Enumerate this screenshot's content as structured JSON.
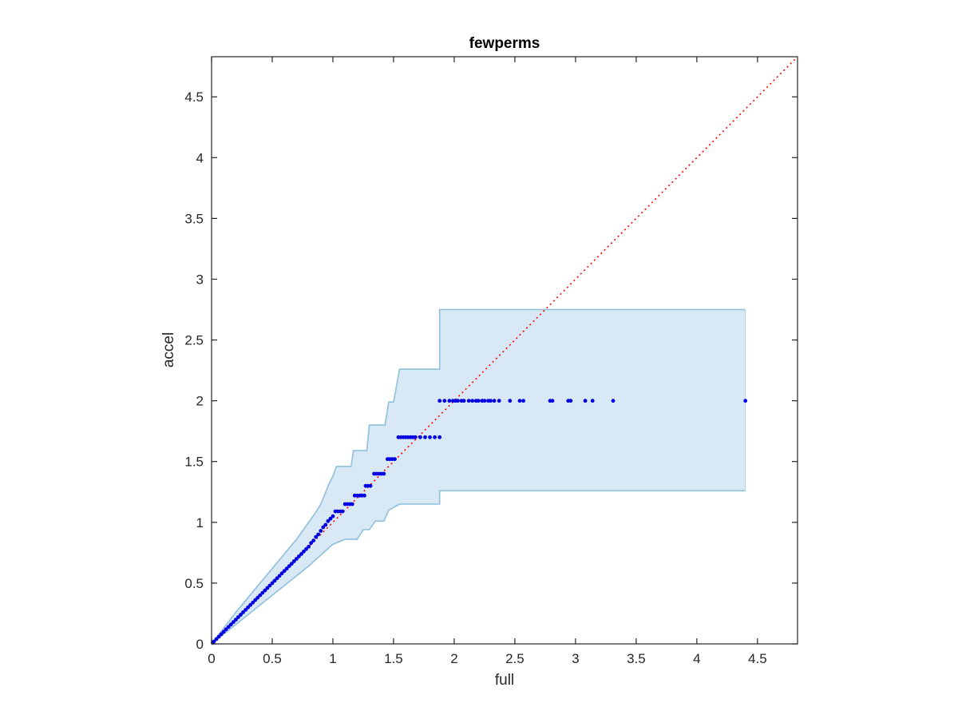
{
  "chart_data": {
    "type": "scatter",
    "title": "fewperms",
    "xlabel": "full",
    "ylabel": "accel",
    "xlim": [
      0,
      4.83
    ],
    "ylim": [
      0,
      4.83
    ],
    "xticks": [
      0,
      0.5,
      1,
      1.5,
      2,
      2.5,
      3,
      3.5,
      4,
      4.5
    ],
    "yticks": [
      0,
      0.5,
      1,
      1.5,
      2,
      2.5,
      3,
      3.5,
      4,
      4.5
    ],
    "xtick_labels": [
      "0",
      "0.5",
      "1",
      "1.5",
      "2",
      "2.5",
      "3",
      "3.5",
      "4",
      "4.5"
    ],
    "ytick_labels": [
      "0",
      "0.5",
      "1",
      "1.5",
      "2",
      "2.5",
      "3",
      "3.5",
      "4",
      "4.5"
    ],
    "grid": false,
    "colors": {
      "points": "#0000e0",
      "band_fill": "#d9e8f5",
      "band_edge": "#8ebfdb",
      "reference_line": "#ff0000",
      "axes": "#262626"
    },
    "reference_line": {
      "x": [
        0,
        4.83
      ],
      "y": [
        0,
        4.83
      ],
      "style": "dotted"
    },
    "band": {
      "upper": [
        [
          0,
          0
        ],
        [
          0.1,
          0.13
        ],
        [
          0.2,
          0.26
        ],
        [
          0.3,
          0.38
        ],
        [
          0.4,
          0.5
        ],
        [
          0.5,
          0.62
        ],
        [
          0.6,
          0.74
        ],
        [
          0.7,
          0.86
        ],
        [
          0.75,
          0.93
        ],
        [
          0.8,
          1.0
        ],
        [
          0.85,
          1.07
        ],
        [
          0.9,
          1.15
        ],
        [
          0.93,
          1.22
        ],
        [
          0.96,
          1.3
        ],
        [
          1.0,
          1.38
        ],
        [
          1.03,
          1.46
        ],
        [
          1.15,
          1.46
        ],
        [
          1.17,
          1.59
        ],
        [
          1.28,
          1.59
        ],
        [
          1.3,
          1.8
        ],
        [
          1.43,
          1.8
        ],
        [
          1.46,
          1.99
        ],
        [
          1.5,
          1.99
        ],
        [
          1.55,
          2.26
        ],
        [
          1.88,
          2.26
        ],
        [
          1.88,
          2.75
        ],
        [
          4.4,
          2.75
        ]
      ],
      "lower": [
        [
          0,
          0
        ],
        [
          0.1,
          0.08
        ],
        [
          0.2,
          0.16
        ],
        [
          0.3,
          0.24
        ],
        [
          0.4,
          0.32
        ],
        [
          0.5,
          0.4
        ],
        [
          0.6,
          0.48
        ],
        [
          0.7,
          0.56
        ],
        [
          0.8,
          0.64
        ],
        [
          0.9,
          0.73
        ],
        [
          1.0,
          0.82
        ],
        [
          1.1,
          0.86
        ],
        [
          1.2,
          0.86
        ],
        [
          1.25,
          0.94
        ],
        [
          1.3,
          0.94
        ],
        [
          1.35,
          1.01
        ],
        [
          1.42,
          1.01
        ],
        [
          1.46,
          1.1
        ],
        [
          1.55,
          1.15
        ],
        [
          1.88,
          1.15
        ],
        [
          1.88,
          1.26
        ],
        [
          4.4,
          1.26
        ]
      ]
    },
    "points": {
      "x": [
        0.01,
        0.02,
        0.04,
        0.06,
        0.08,
        0.1,
        0.12,
        0.14,
        0.16,
        0.18,
        0.2,
        0.22,
        0.24,
        0.26,
        0.28,
        0.3,
        0.32,
        0.34,
        0.36,
        0.38,
        0.4,
        0.42,
        0.44,
        0.46,
        0.48,
        0.5,
        0.52,
        0.54,
        0.56,
        0.58,
        0.6,
        0.62,
        0.64,
        0.66,
        0.68,
        0.7,
        0.72,
        0.74,
        0.76,
        0.78,
        0.8,
        0.82,
        0.84,
        0.86,
        0.88,
        0.9,
        0.92,
        0.94,
        0.96,
        0.98,
        1.0,
        1.02,
        1.04,
        1.06,
        1.08,
        1.1,
        1.12,
        1.14,
        1.16,
        1.18,
        1.2,
        1.22,
        1.24,
        1.26,
        1.27,
        1.29,
        1.31,
        1.34,
        1.36,
        1.38,
        1.4,
        1.42,
        1.45,
        1.47,
        1.49,
        1.51,
        1.54,
        1.56,
        1.58,
        1.6,
        1.62,
        1.64,
        1.66,
        1.68,
        1.72,
        1.76,
        1.8,
        1.84,
        1.88,
        1.88,
        1.92,
        1.96,
        1.99,
        2.01,
        2.03,
        2.06,
        2.08,
        2.12,
        2.15,
        2.18,
        2.2,
        2.23,
        2.25,
        2.28,
        2.3,
        2.33,
        2.37,
        2.46,
        2.54,
        2.57,
        2.79,
        2.81,
        2.94,
        2.96,
        3.08,
        3.14,
        3.31,
        4.4
      ],
      "y": [
        0.01,
        0.02,
        0.04,
        0.06,
        0.08,
        0.1,
        0.12,
        0.14,
        0.16,
        0.18,
        0.2,
        0.22,
        0.24,
        0.26,
        0.28,
        0.3,
        0.32,
        0.34,
        0.36,
        0.38,
        0.4,
        0.42,
        0.44,
        0.46,
        0.48,
        0.5,
        0.52,
        0.54,
        0.56,
        0.58,
        0.6,
        0.62,
        0.64,
        0.66,
        0.68,
        0.7,
        0.72,
        0.74,
        0.76,
        0.78,
        0.8,
        0.83,
        0.85,
        0.88,
        0.9,
        0.93,
        0.96,
        0.98,
        1.01,
        1.03,
        1.05,
        1.09,
        1.09,
        1.09,
        1.09,
        1.15,
        1.15,
        1.15,
        1.15,
        1.22,
        1.22,
        1.22,
        1.22,
        1.22,
        1.3,
        1.3,
        1.3,
        1.4,
        1.4,
        1.4,
        1.4,
        1.4,
        1.52,
        1.52,
        1.52,
        1.52,
        1.7,
        1.7,
        1.7,
        1.7,
        1.7,
        1.7,
        1.7,
        1.7,
        1.7,
        1.7,
        1.7,
        1.7,
        1.7,
        2.0,
        2.0,
        2.0,
        2.0,
        2.0,
        2.0,
        2.0,
        2.0,
        2.0,
        2.0,
        2.0,
        2.0,
        2.0,
        2.0,
        2.0,
        2.0,
        2.0,
        2.0,
        2.0,
        2.0,
        2.0,
        2.0,
        2.0,
        2.0,
        2.0,
        2.0,
        2.0,
        2.0,
        2.0
      ]
    }
  }
}
